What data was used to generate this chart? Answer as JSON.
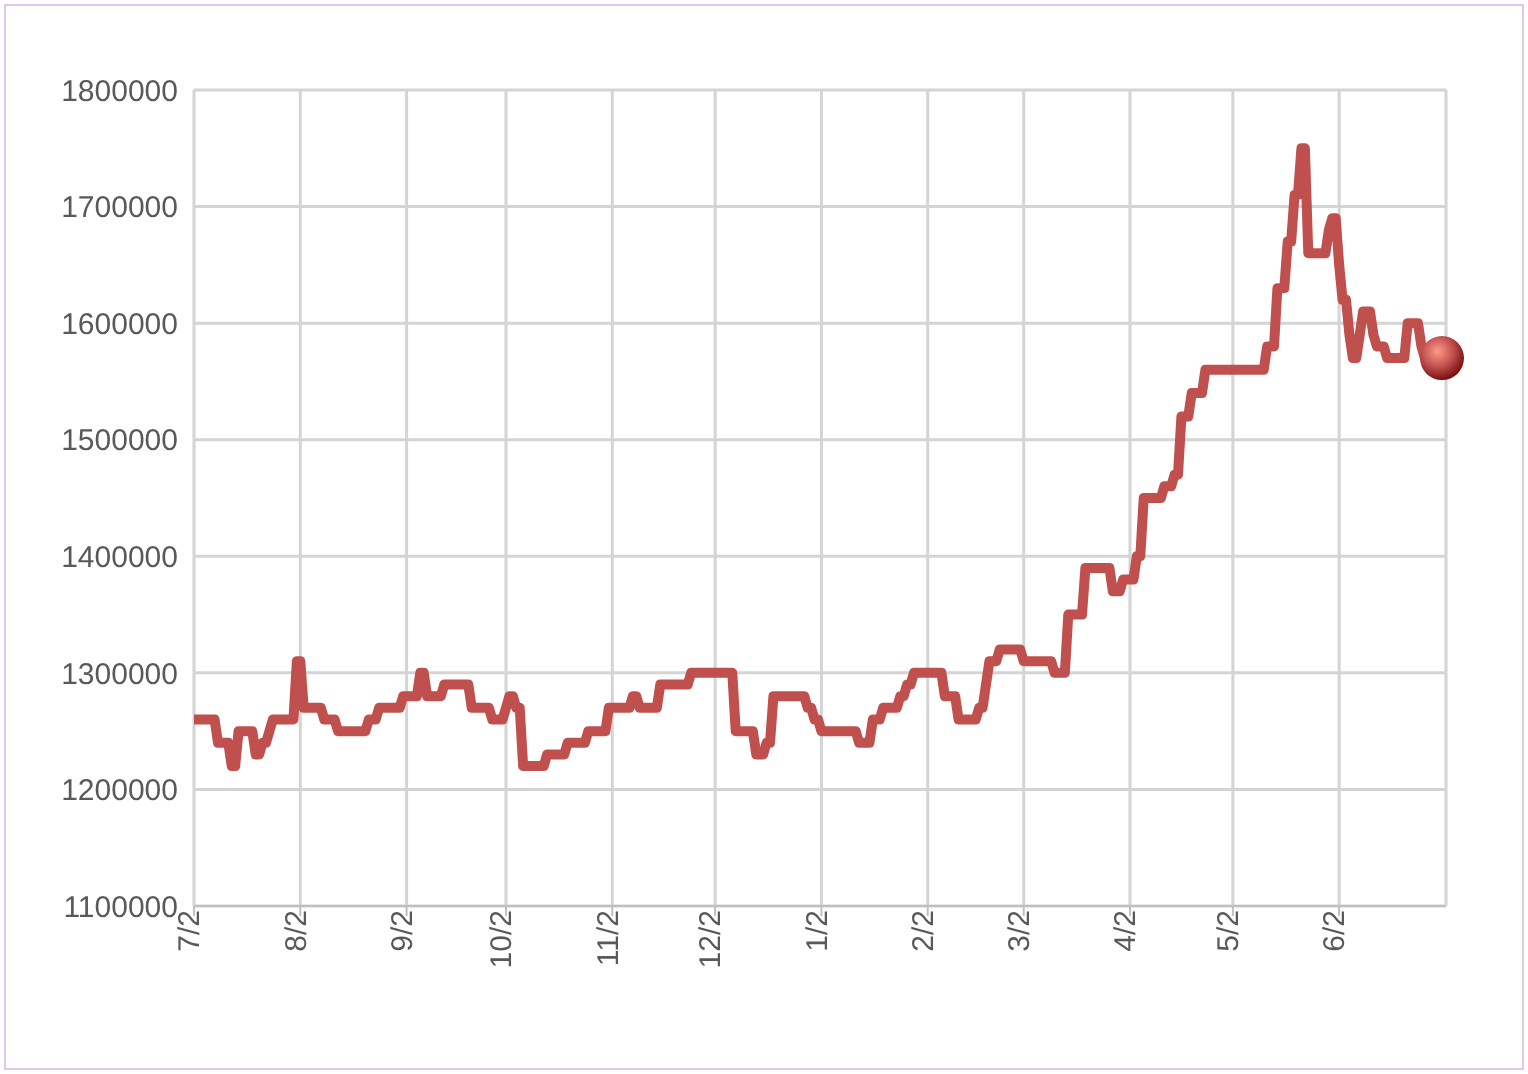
{
  "chart_data": {
    "type": "line",
    "categories": [
      "7/2",
      null,
      null,
      null,
      null,
      null,
      null,
      null,
      null,
      null,
      null,
      null,
      null,
      null,
      null,
      null,
      null,
      null,
      null,
      null,
      null,
      null,
      null,
      null,
      null,
      null,
      null,
      null,
      null,
      null,
      null,
      "8/2",
      null,
      null,
      null,
      null,
      null,
      null,
      null,
      null,
      null,
      null,
      null,
      null,
      null,
      null,
      null,
      null,
      null,
      null,
      null,
      null,
      null,
      null,
      null,
      null,
      null,
      null,
      null,
      null,
      null,
      null,
      "9/2",
      null,
      null,
      null,
      null,
      null,
      null,
      null,
      null,
      null,
      null,
      null,
      null,
      null,
      null,
      null,
      null,
      null,
      null,
      null,
      null,
      null,
      null,
      null,
      null,
      null,
      null,
      null,
      null,
      "10/2",
      null,
      null,
      null,
      null,
      null,
      null,
      null,
      null,
      null,
      null,
      null,
      null,
      null,
      null,
      null,
      null,
      null,
      null,
      null,
      null,
      null,
      null,
      null,
      null,
      null,
      null,
      null,
      null,
      null,
      null,
      "11/2",
      null,
      null,
      null,
      null,
      null,
      null,
      null,
      null,
      null,
      null,
      null,
      null,
      null,
      null,
      null,
      null,
      null,
      null,
      null,
      null,
      null,
      null,
      null,
      null,
      null,
      null,
      null,
      null,
      null,
      "12/2",
      null,
      null,
      null,
      null,
      null,
      null,
      null,
      null,
      null,
      null,
      null,
      null,
      null,
      null,
      null,
      null,
      null,
      null,
      null,
      null,
      null,
      null,
      null,
      null,
      null,
      null,
      null,
      null,
      null,
      null,
      "1/2",
      null,
      null,
      null,
      null,
      null,
      null,
      null,
      null,
      null,
      null,
      null,
      null,
      null,
      null,
      null,
      null,
      null,
      null,
      null,
      null,
      null,
      null,
      null,
      null,
      null,
      null,
      null,
      null,
      null,
      null,
      "2/2",
      null,
      null,
      null,
      null,
      null,
      null,
      null,
      null,
      null,
      null,
      null,
      null,
      null,
      null,
      null,
      null,
      null,
      null,
      null,
      null,
      null,
      null,
      null,
      null,
      null,
      null,
      null,
      "3/2",
      null,
      null,
      null,
      null,
      null,
      null,
      null,
      null,
      null,
      null,
      null,
      null,
      null,
      null,
      null,
      null,
      null,
      null,
      null,
      null,
      null,
      null,
      null,
      null,
      null,
      null,
      null,
      null,
      null,
      null,
      "4/2",
      null,
      null,
      null,
      null,
      null,
      null,
      null,
      null,
      null,
      null,
      null,
      null,
      null,
      null,
      null,
      null,
      null,
      null,
      null,
      null,
      null,
      null,
      null,
      null,
      null,
      null,
      null,
      null,
      null,
      "5/2",
      null,
      null,
      null,
      null,
      null,
      null,
      null,
      null,
      null,
      null,
      null,
      null,
      null,
      null,
      null,
      null,
      null,
      null,
      null,
      null,
      null,
      null,
      null,
      null,
      null,
      null,
      null,
      null,
      null,
      null,
      "6/2",
      null,
      null,
      null,
      null,
      null,
      null,
      null,
      null,
      null,
      null,
      null,
      null,
      null,
      null,
      null,
      null,
      null,
      null,
      null,
      null,
      null,
      null,
      null,
      null,
      null,
      null,
      null,
      null,
      null,
      null
    ],
    "series": [
      {
        "color": "#c0504d",
        "values": [
          1260000,
          1260000,
          1260000,
          1260000,
          1260000,
          1260000,
          1260000,
          1240000,
          1240000,
          1240000,
          1240000,
          1220000,
          1220000,
          1250000,
          1250000,
          1250000,
          1250000,
          1250000,
          1230000,
          1230000,
          1240000,
          1240000,
          1250000,
          1260000,
          1260000,
          1260000,
          1260000,
          1260000,
          1260000,
          1260000,
          1310000,
          1310000,
          1270000,
          1270000,
          1270000,
          1270000,
          1270000,
          1270000,
          1260000,
          1260000,
          1260000,
          1260000,
          1250000,
          1250000,
          1250000,
          1250000,
          1250000,
          1250000,
          1250000,
          1250000,
          1250000,
          1260000,
          1260000,
          1260000,
          1270000,
          1270000,
          1270000,
          1270000,
          1270000,
          1270000,
          1270000,
          1280000,
          1280000,
          1280000,
          1280000,
          1280000,
          1300000,
          1300000,
          1280000,
          1280000,
          1280000,
          1280000,
          1280000,
          1290000,
          1290000,
          1290000,
          1290000,
          1290000,
          1290000,
          1290000,
          1290000,
          1270000,
          1270000,
          1270000,
          1270000,
          1270000,
          1270000,
          1260000,
          1260000,
          1260000,
          1260000,
          1270000,
          1280000,
          1280000,
          1270000,
          1270000,
          1220000,
          1220000,
          1220000,
          1220000,
          1220000,
          1220000,
          1220000,
          1230000,
          1230000,
          1230000,
          1230000,
          1230000,
          1230000,
          1240000,
          1240000,
          1240000,
          1240000,
          1240000,
          1240000,
          1250000,
          1250000,
          1250000,
          1250000,
          1250000,
          1250000,
          1270000,
          1270000,
          1270000,
          1270000,
          1270000,
          1270000,
          1270000,
          1280000,
          1280000,
          1270000,
          1270000,
          1270000,
          1270000,
          1270000,
          1270000,
          1290000,
          1290000,
          1290000,
          1290000,
          1290000,
          1290000,
          1290000,
          1290000,
          1290000,
          1300000,
          1300000,
          1300000,
          1300000,
          1300000,
          1300000,
          1300000,
          1300000,
          1300000,
          1300000,
          1300000,
          1300000,
          1300000,
          1250000,
          1250000,
          1250000,
          1250000,
          1250000,
          1250000,
          1230000,
          1230000,
          1230000,
          1240000,
          1240000,
          1280000,
          1280000,
          1280000,
          1280000,
          1280000,
          1280000,
          1280000,
          1280000,
          1280000,
          1280000,
          1270000,
          1270000,
          1260000,
          1260000,
          1250000,
          1250000,
          1250000,
          1250000,
          1250000,
          1250000,
          1250000,
          1250000,
          1250000,
          1250000,
          1250000,
          1240000,
          1240000,
          1240000,
          1240000,
          1260000,
          1260000,
          1260000,
          1270000,
          1270000,
          1270000,
          1270000,
          1270000,
          1280000,
          1280000,
          1290000,
          1290000,
          1300000,
          1300000,
          1300000,
          1300000,
          1300000,
          1300000,
          1300000,
          1300000,
          1300000,
          1280000,
          1280000,
          1280000,
          1280000,
          1260000,
          1260000,
          1260000,
          1260000,
          1260000,
          1260000,
          1270000,
          1270000,
          1290000,
          1310000,
          1310000,
          1310000,
          1320000,
          1320000,
          1320000,
          1320000,
          1320000,
          1320000,
          1320000,
          1310000,
          1310000,
          1310000,
          1310000,
          1310000,
          1310000,
          1310000,
          1310000,
          1310000,
          1300000,
          1300000,
          1300000,
          1300000,
          1350000,
          1350000,
          1350000,
          1350000,
          1350000,
          1390000,
          1390000,
          1390000,
          1390000,
          1390000,
          1390000,
          1390000,
          1390000,
          1370000,
          1370000,
          1370000,
          1380000,
          1380000,
          1380000,
          1380000,
          1400000,
          1400000,
          1450000,
          1450000,
          1450000,
          1450000,
          1450000,
          1450000,
          1460000,
          1460000,
          1460000,
          1470000,
          1470000,
          1520000,
          1520000,
          1520000,
          1540000,
          1540000,
          1540000,
          1540000,
          1560000,
          1560000,
          1560000,
          1560000,
          1560000,
          1560000,
          1560000,
          1560000,
          1560000,
          1560000,
          1560000,
          1560000,
          1560000,
          1560000,
          1560000,
          1560000,
          1560000,
          1560000,
          1580000,
          1580000,
          1580000,
          1630000,
          1630000,
          1630000,
          1670000,
          1670000,
          1710000,
          1710000,
          1750000,
          1750000,
          1660000,
          1660000,
          1660000,
          1660000,
          1660000,
          1660000,
          1680000,
          1690000,
          1690000,
          1650000,
          1620000,
          1620000,
          1590000,
          1570000,
          1570000,
          1590000,
          1610000,
          1610000,
          1610000,
          1590000,
          1580000,
          1580000,
          1580000,
          1570000,
          1570000,
          1570000,
          1570000,
          1570000,
          1570000,
          1600000,
          1600000,
          1600000,
          1600000,
          1580000,
          1570000,
          1570000,
          1570000,
          1570000,
          1570000,
          1570000
        ]
      }
    ],
    "ylim": [
      1100000,
      1800000
    ],
    "yticks": [
      1100000,
      1200000,
      1300000,
      1400000,
      1500000,
      1600000,
      1700000,
      1800000
    ],
    "grid": true
  }
}
